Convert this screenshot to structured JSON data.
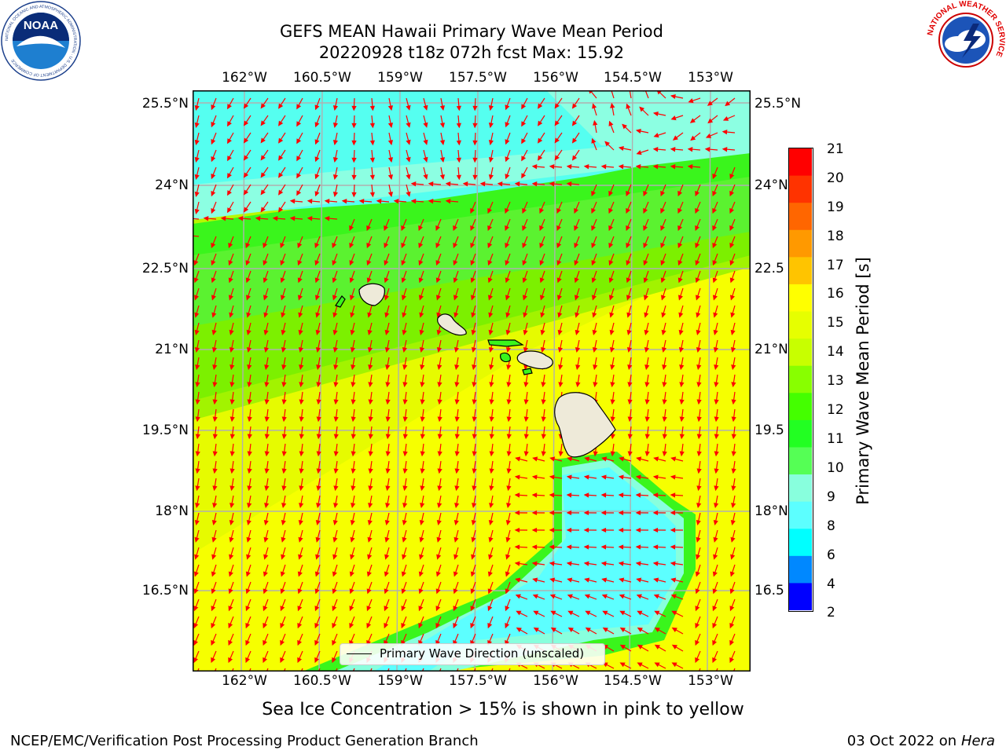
{
  "header": {
    "title_line1": "GEFS MEAN Hawaii Primary Wave Mean Period",
    "title_line2": "20220928 t18z 072h fcst   Max: 15.92"
  },
  "logos": {
    "noaa_text": "NOAA",
    "noaa_ring": "NATIONAL OCEANIC AND ATMOSPHERIC ADMINISTRATION · U.S. DEPARTMENT OF COMMERCE",
    "nws_ring": "NATIONAL WEATHER SERVICE"
  },
  "map": {
    "lon_labels": [
      "162°W",
      "160.5°W",
      "159°W",
      "157.5°W",
      "156°W",
      "154.5°W",
      "153°W"
    ],
    "lat_labels_left": [
      "25.5°N",
      "24°N",
      "22.5°N",
      "21°N",
      "19.5°N",
      "18°N",
      "16.5°N"
    ],
    "lat_labels_right": [
      "25.5°N",
      "24°N",
      "22.5",
      "21°N",
      "19.5",
      "18°N",
      "16.5"
    ],
    "legend_label": "Primary Wave Direction (unscaled)",
    "arrow_color": "#ff0000",
    "land_color": "#eeead9"
  },
  "colorbar": {
    "label": "Primary Wave Mean Period [s]",
    "ticks": [
      "21",
      "20",
      "19",
      "18",
      "17",
      "16",
      "15",
      "14",
      "13",
      "12",
      "11",
      "10",
      "9",
      "8",
      "6",
      "4",
      "2"
    ],
    "colors": [
      "#ff0000",
      "#ff3300",
      "#ff6600",
      "#ff9900",
      "#ffc400",
      "#ffff00",
      "#e6ff00",
      "#c8ff00",
      "#88ff00",
      "#44ff00",
      "#22ff22",
      "#55ff55",
      "#88ffdd",
      "#5cffff",
      "#00ffff",
      "#0088ff",
      "#0000ff"
    ]
  },
  "footer": {
    "ice_note": "Sea Ice Concentration > 15% is shown in pink to yellow",
    "credit": "NCEP/EMC/Verification Post Processing Product Generation Branch",
    "date_prefix": "03 Oct 2022 on ",
    "date_machine": "Hera"
  }
}
